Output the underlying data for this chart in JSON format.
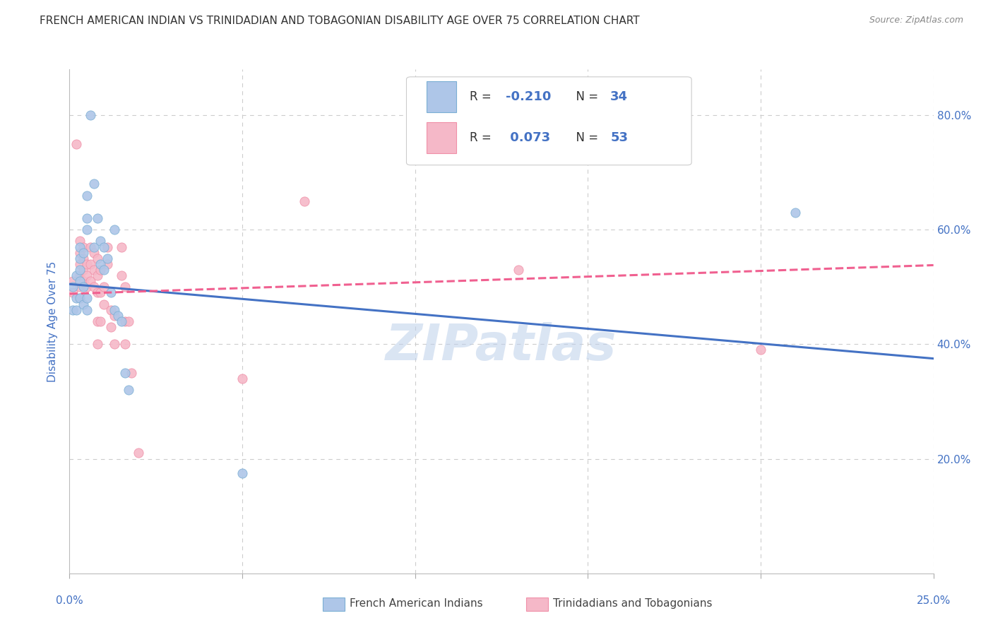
{
  "title": "FRENCH AMERICAN INDIAN VS TRINIDADIAN AND TOBAGONIAN DISABILITY AGE OVER 75 CORRELATION CHART",
  "source": "Source: ZipAtlas.com",
  "ylabel": "Disability Age Over 75",
  "legend_label_blue": "French American Indians",
  "legend_label_pink": "Trinidadians and Tobagonians",
  "watermark": "ZIPatlas",
  "blue_fill": "#aec6e8",
  "pink_fill": "#f5b8c8",
  "blue_edge": "#7bafd4",
  "pink_edge": "#f090a8",
  "line_blue": "#4472c4",
  "line_pink": "#f06090",
  "blue_scatter": [
    [
      0.001,
      0.5
    ],
    [
      0.001,
      0.46
    ],
    [
      0.002,
      0.52
    ],
    [
      0.002,
      0.48
    ],
    [
      0.002,
      0.46
    ],
    [
      0.003,
      0.57
    ],
    [
      0.003,
      0.55
    ],
    [
      0.003,
      0.53
    ],
    [
      0.003,
      0.51
    ],
    [
      0.003,
      0.48
    ],
    [
      0.004,
      0.56
    ],
    [
      0.004,
      0.5
    ],
    [
      0.004,
      0.47
    ],
    [
      0.005,
      0.66
    ],
    [
      0.005,
      0.62
    ],
    [
      0.005,
      0.6
    ],
    [
      0.005,
      0.48
    ],
    [
      0.005,
      0.46
    ],
    [
      0.006,
      0.8
    ],
    [
      0.007,
      0.68
    ],
    [
      0.007,
      0.57
    ],
    [
      0.008,
      0.62
    ],
    [
      0.009,
      0.58
    ],
    [
      0.009,
      0.54
    ],
    [
      0.01,
      0.57
    ],
    [
      0.01,
      0.53
    ],
    [
      0.011,
      0.55
    ],
    [
      0.012,
      0.49
    ],
    [
      0.013,
      0.6
    ],
    [
      0.013,
      0.46
    ],
    [
      0.014,
      0.45
    ],
    [
      0.015,
      0.44
    ],
    [
      0.016,
      0.35
    ],
    [
      0.017,
      0.32
    ],
    [
      0.05,
      0.175
    ],
    [
      0.21,
      0.63
    ]
  ],
  "pink_scatter": [
    [
      0.001,
      0.51
    ],
    [
      0.001,
      0.49
    ],
    [
      0.002,
      0.75
    ],
    [
      0.003,
      0.58
    ],
    [
      0.003,
      0.56
    ],
    [
      0.003,
      0.54
    ],
    [
      0.003,
      0.52
    ],
    [
      0.003,
      0.5
    ],
    [
      0.003,
      0.48
    ],
    [
      0.004,
      0.57
    ],
    [
      0.004,
      0.55
    ],
    [
      0.004,
      0.53
    ],
    [
      0.004,
      0.51
    ],
    [
      0.005,
      0.54
    ],
    [
      0.005,
      0.52
    ],
    [
      0.005,
      0.5
    ],
    [
      0.006,
      0.57
    ],
    [
      0.006,
      0.54
    ],
    [
      0.006,
      0.51
    ],
    [
      0.007,
      0.56
    ],
    [
      0.007,
      0.53
    ],
    [
      0.007,
      0.5
    ],
    [
      0.008,
      0.55
    ],
    [
      0.008,
      0.52
    ],
    [
      0.008,
      0.49
    ],
    [
      0.008,
      0.44
    ],
    [
      0.008,
      0.4
    ],
    [
      0.009,
      0.53
    ],
    [
      0.009,
      0.49
    ],
    [
      0.009,
      0.44
    ],
    [
      0.01,
      0.5
    ],
    [
      0.01,
      0.47
    ],
    [
      0.011,
      0.57
    ],
    [
      0.011,
      0.54
    ],
    [
      0.012,
      0.46
    ],
    [
      0.012,
      0.43
    ],
    [
      0.013,
      0.45
    ],
    [
      0.013,
      0.4
    ],
    [
      0.015,
      0.57
    ],
    [
      0.015,
      0.52
    ],
    [
      0.016,
      0.5
    ],
    [
      0.016,
      0.44
    ],
    [
      0.016,
      0.4
    ],
    [
      0.017,
      0.44
    ],
    [
      0.018,
      0.35
    ],
    [
      0.02,
      0.21
    ],
    [
      0.05,
      0.34
    ],
    [
      0.068,
      0.65
    ],
    [
      0.13,
      0.53
    ],
    [
      0.2,
      0.39
    ]
  ],
  "xmin": 0.0,
  "xmax": 0.25,
  "ymin": 0.0,
  "ymax": 0.88,
  "blue_line_x": [
    0.0,
    0.25
  ],
  "blue_line_y": [
    0.505,
    0.375
  ],
  "pink_line_x": [
    0.0,
    0.25
  ],
  "pink_line_y": [
    0.488,
    0.538
  ],
  "grid_color": "#cccccc",
  "title_color": "#333333",
  "tick_color": "#4472c4"
}
